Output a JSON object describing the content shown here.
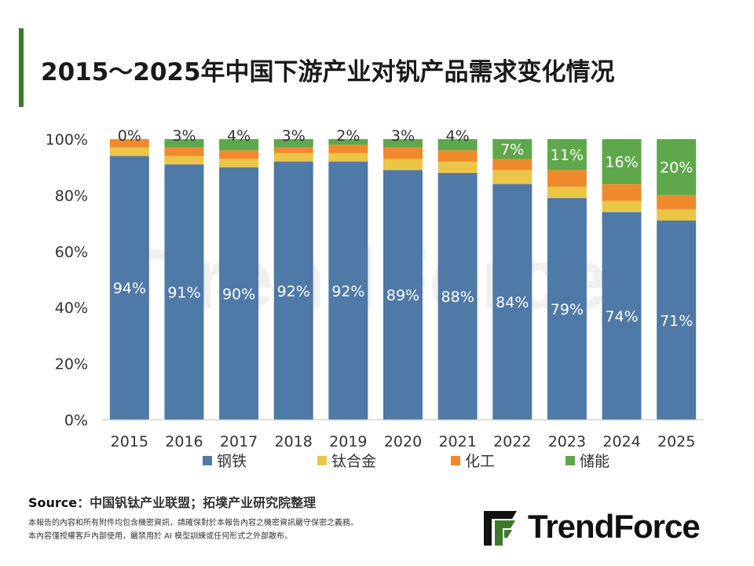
{
  "title": "2015～2025年中国下游产业对钒产品需求变化情况",
  "colors": {
    "accent": "#3b7a2a",
    "steel": "#4f79a7",
    "titanium": "#ebc545",
    "chemical": "#ef8a2c",
    "storage": "#5ea84b",
    "axis_text": "#333333",
    "watermark": "#dedede"
  },
  "chart_data": {
    "type": "bar",
    "stacked": true,
    "categories": [
      "2015",
      "2016",
      "2017",
      "2018",
      "2019",
      "2020",
      "2021",
      "2022",
      "2023",
      "2024",
      "2025"
    ],
    "series": [
      {
        "name": "钢铁",
        "color": "#4f79a7",
        "label_color": "#ffffff",
        "values": [
          94,
          91,
          90,
          92,
          92,
          89,
          88,
          84,
          79,
          74,
          71
        ],
        "labels": [
          "94%",
          "91%",
          "90%",
          "92%",
          "92%",
          "89%",
          "88%",
          "84%",
          "79%",
          "74%",
          "71%"
        ]
      },
      {
        "name": "钛合金",
        "color": "#ebc545",
        "values": [
          3,
          3,
          3,
          3,
          3,
          4,
          4,
          5,
          4,
          4,
          4
        ]
      },
      {
        "name": "化工",
        "color": "#ef8a2c",
        "values": [
          3,
          3,
          3,
          2,
          3,
          4,
          4,
          4,
          6,
          6,
          5
        ]
      },
      {
        "name": "储能",
        "color": "#5ea84b",
        "label_color": "#333333",
        "values": [
          0,
          3,
          4,
          3,
          2,
          3,
          4,
          7,
          11,
          16,
          20
        ],
        "labels": [
          "0%",
          "3%",
          "4%",
          "3%",
          "2%",
          "3%",
          "4%",
          "7%",
          "11%",
          "16%",
          "20%"
        ]
      }
    ],
    "ylim": [
      0,
      100
    ],
    "yticks": [
      0,
      20,
      40,
      60,
      80,
      100
    ],
    "ytick_labels": [
      "0%",
      "20%",
      "40%",
      "60%",
      "80%",
      "100%"
    ],
    "legend_position": "bottom",
    "xlabel": "",
    "ylabel": ""
  },
  "source": {
    "label": "Source",
    "text": "：中国钒钛产业联盟；拓墣产业研究院整理"
  },
  "disclaimer": [
    "本報告的內容和所有附件均包含機密資訊，請確保對於本報告內容之機密資訊嚴守保密之義務。",
    "本內容僅授權客戶內部使用，嚴禁用於 AI 模型訓練或任何形式之外部散布。"
  ],
  "logo": {
    "text": "TrendForce",
    "watermark_text": "TrendForce"
  }
}
